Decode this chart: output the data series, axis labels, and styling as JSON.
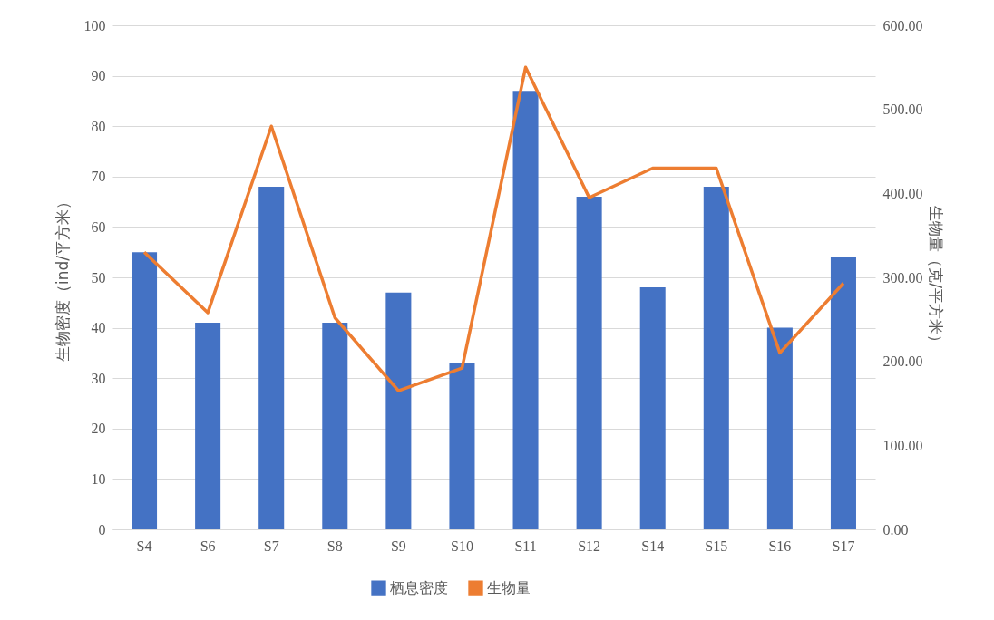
{
  "chart_data": {
    "type": "bar",
    "ylabel": "生物密度（ind/平方米）",
    "y2label": "生物量（克/平方米）",
    "categories": [
      "S4",
      "S6",
      "S7",
      "S8",
      "S9",
      "S10",
      "S11",
      "S12",
      "S14",
      "S15",
      "S16",
      "S17"
    ],
    "series": [
      {
        "name": "栖息密度",
        "color": "#4472c4",
        "values": [
          55,
          41,
          68,
          41,
          47,
          33,
          87,
          66,
          48,
          68,
          40,
          54
        ]
      },
      {
        "name": "生物量",
        "type": "line",
        "axis": "y2",
        "color": "#ed7d31",
        "values": [
          330,
          258,
          480,
          252,
          165,
          192,
          550,
          395,
          430,
          430,
          210,
          293
        ]
      }
    ],
    "ylim": [
      0,
      100
    ],
    "yticks": [
      0,
      10,
      20,
      30,
      40,
      50,
      60,
      70,
      80,
      90,
      100
    ],
    "y2lim": [
      0,
      600
    ],
    "y2ticks": [
      {
        "value": 0,
        "label": "0.00"
      },
      {
        "value": 100,
        "label": "100.00"
      },
      {
        "value": 200,
        "label": "200.00"
      },
      {
        "value": 300,
        "label": "300.00"
      },
      {
        "value": 400,
        "label": "400.00"
      },
      {
        "value": 500,
        "label": "500.00"
      },
      {
        "value": 600,
        "label": "600.00"
      }
    ],
    "grid": "y",
    "legend": "bottom"
  }
}
